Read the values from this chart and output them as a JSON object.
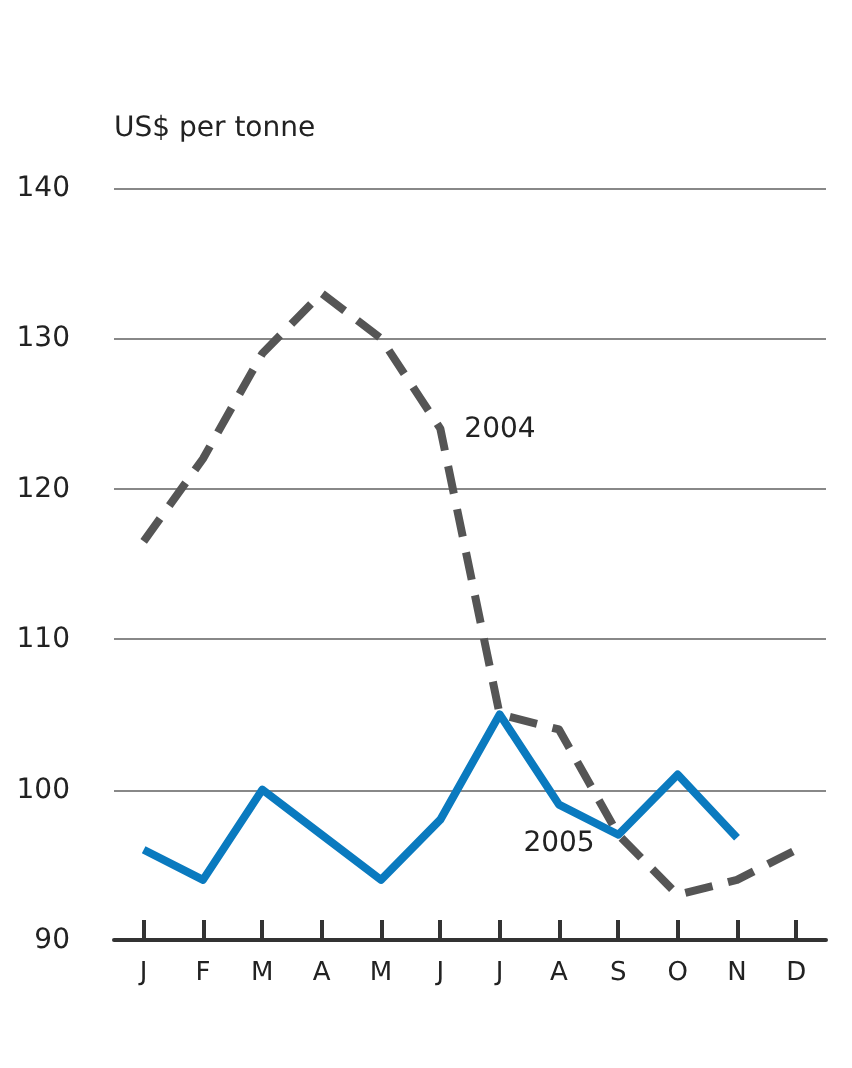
{
  "chart_data": {
    "type": "line",
    "ylabel": "US$ per tonne",
    "categories": [
      "J",
      "F",
      "M",
      "A",
      "M",
      "J",
      "J",
      "A",
      "S",
      "O",
      "N",
      "D"
    ],
    "series": [
      {
        "name": "2004",
        "color": "#555555",
        "line_style": "dashed",
        "values": [
          116.5,
          122,
          129,
          133,
          130,
          124,
          105,
          104,
          97,
          93,
          94,
          96
        ]
      },
      {
        "name": "2005",
        "color": "#0a7abf",
        "line_style": "solid",
        "values": [
          96,
          94,
          100,
          97,
          94,
          98,
          105,
          99,
          97,
          101,
          96.8,
          null
        ]
      }
    ],
    "ylim": [
      90,
      140
    ],
    "yticks": [
      90,
      100,
      110,
      120,
      130,
      140
    ],
    "grid": "y",
    "legend": false,
    "marker": "none"
  }
}
